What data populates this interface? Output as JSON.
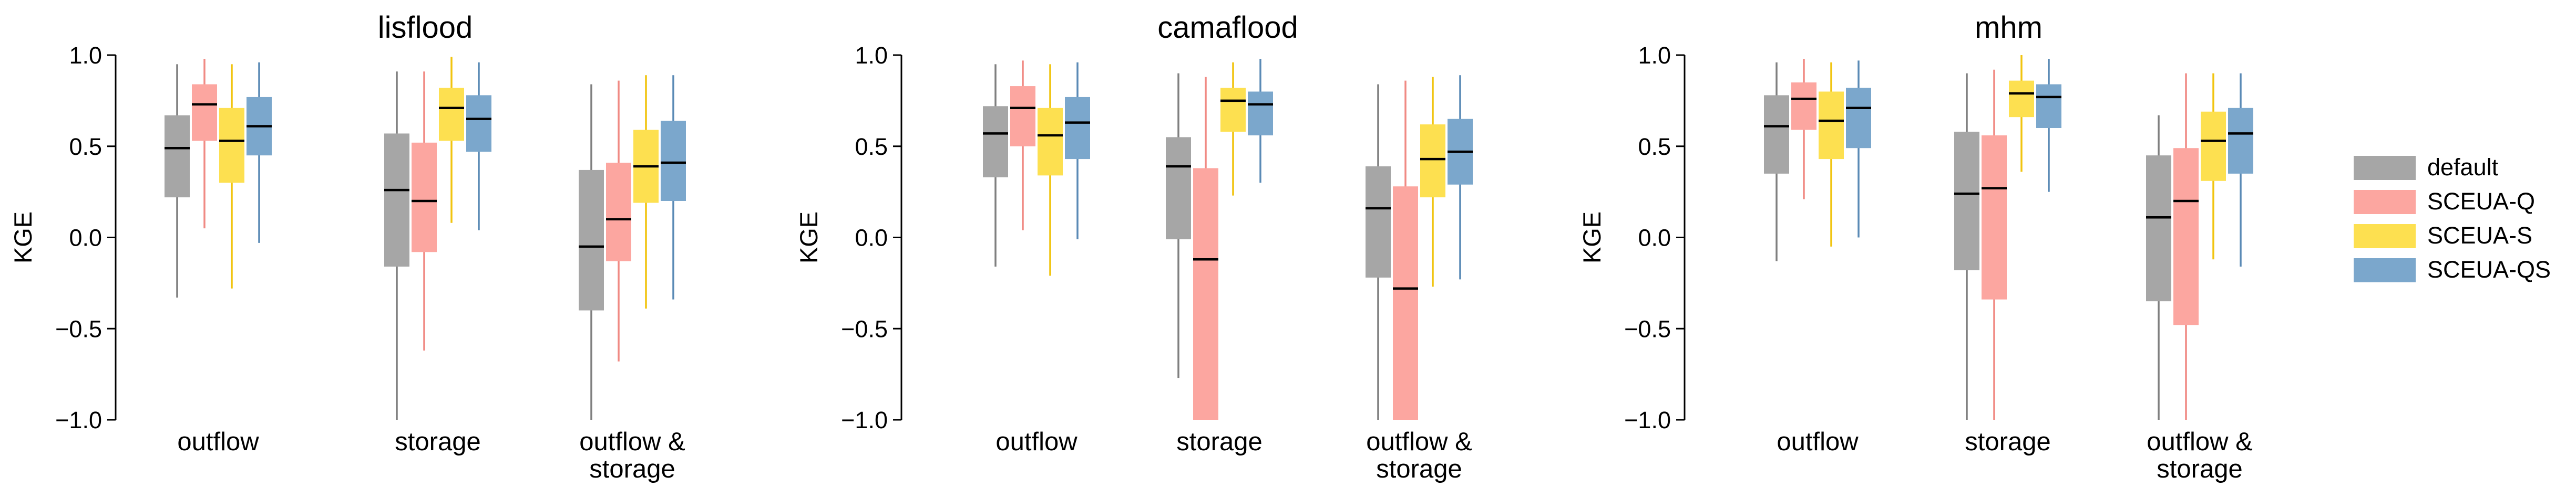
{
  "chart_data": {
    "type": "box",
    "ylabel": "KGE",
    "ylim": [
      -1.0,
      1.0
    ],
    "yticks": [
      {
        "value": -1.0,
        "label": "−1.0"
      },
      {
        "value": -0.5,
        "label": "−0.5"
      },
      {
        "value": 0.0,
        "label": "0.0"
      },
      {
        "value": 0.5,
        "label": "0.5"
      },
      {
        "value": 1.0,
        "label": "1.0"
      }
    ],
    "grid": false,
    "legend_position": "right",
    "categories": [
      {
        "lines": [
          "outflow"
        ]
      },
      {
        "lines": [
          "storage"
        ]
      },
      {
        "lines": [
          "outflow &",
          "storage"
        ]
      }
    ],
    "series": [
      {
        "name": "default",
        "fill": "#a6a6a6",
        "whisker": "#7f7f7f"
      },
      {
        "name": "SCEUA-Q",
        "fill": "#fca6a0",
        "whisker": "#f08a84"
      },
      {
        "name": "SCEUA-S",
        "fill": "#fde050",
        "whisker": "#f1c40f"
      },
      {
        "name": "SCEUA-QS",
        "fill": "#7ba7cc",
        "whisker": "#5a8ab5"
      }
    ],
    "panels": [
      {
        "title": "lisflood",
        "groups": [
          [
            {
              "whislo": -0.33,
              "q1": 0.22,
              "median": 0.49,
              "q3": 0.67,
              "whishi": 0.95
            },
            {
              "whislo": 0.05,
              "q1": 0.53,
              "median": 0.73,
              "q3": 0.84,
              "whishi": 0.98
            },
            {
              "whislo": -0.28,
              "q1": 0.3,
              "median": 0.53,
              "q3": 0.71,
              "whishi": 0.95
            },
            {
              "whislo": -0.03,
              "q1": 0.45,
              "median": 0.61,
              "q3": 0.77,
              "whishi": 0.96
            }
          ],
          [
            {
              "whislo": -1.0,
              "q1": -0.16,
              "median": 0.26,
              "q3": 0.57,
              "whishi": 0.91
            },
            {
              "whislo": -0.62,
              "q1": -0.08,
              "median": 0.2,
              "q3": 0.52,
              "whishi": 0.91
            },
            {
              "whislo": 0.08,
              "q1": 0.53,
              "median": 0.71,
              "q3": 0.82,
              "whishi": 0.99
            },
            {
              "whislo": 0.04,
              "q1": 0.47,
              "median": 0.65,
              "q3": 0.78,
              "whishi": 0.96
            }
          ],
          [
            {
              "whislo": -1.0,
              "q1": -0.4,
              "median": -0.05,
              "q3": 0.37,
              "whishi": 0.84
            },
            {
              "whislo": -0.68,
              "q1": -0.13,
              "median": 0.1,
              "q3": 0.41,
              "whishi": 0.86
            },
            {
              "whislo": -0.39,
              "q1": 0.19,
              "median": 0.39,
              "q3": 0.59,
              "whishi": 0.89
            },
            {
              "whislo": -0.34,
              "q1": 0.2,
              "median": 0.41,
              "q3": 0.64,
              "whishi": 0.89
            }
          ]
        ]
      },
      {
        "title": "camaflood",
        "groups": [
          [
            {
              "whislo": -0.16,
              "q1": 0.33,
              "median": 0.57,
              "q3": 0.72,
              "whishi": 0.95
            },
            {
              "whislo": 0.04,
              "q1": 0.5,
              "median": 0.71,
              "q3": 0.83,
              "whishi": 0.97
            },
            {
              "whislo": -0.21,
              "q1": 0.34,
              "median": 0.56,
              "q3": 0.71,
              "whishi": 0.95
            },
            {
              "whislo": -0.01,
              "q1": 0.43,
              "median": 0.63,
              "q3": 0.77,
              "whishi": 0.96
            }
          ],
          [
            {
              "whislo": -0.77,
              "q1": -0.01,
              "median": 0.39,
              "q3": 0.55,
              "whishi": 0.9
            },
            {
              "whislo": -1.0,
              "q1": -1.0,
              "median": -0.12,
              "q3": 0.38,
              "whishi": 0.88
            },
            {
              "whislo": 0.23,
              "q1": 0.58,
              "median": 0.75,
              "q3": 0.82,
              "whishi": 0.96
            },
            {
              "whislo": 0.3,
              "q1": 0.56,
              "median": 0.73,
              "q3": 0.8,
              "whishi": 0.98
            }
          ],
          [
            {
              "whislo": -1.0,
              "q1": -0.22,
              "median": 0.16,
              "q3": 0.39,
              "whishi": 0.84
            },
            {
              "whislo": -1.0,
              "q1": -1.0,
              "median": -0.28,
              "q3": 0.28,
              "whishi": 0.86
            },
            {
              "whislo": -0.27,
              "q1": 0.22,
              "median": 0.43,
              "q3": 0.62,
              "whishi": 0.88
            },
            {
              "whislo": -0.23,
              "q1": 0.29,
              "median": 0.47,
              "q3": 0.65,
              "whishi": 0.89
            }
          ]
        ]
      },
      {
        "title": "mhm",
        "groups": [
          [
            {
              "whislo": -0.13,
              "q1": 0.35,
              "median": 0.61,
              "q3": 0.78,
              "whishi": 0.96
            },
            {
              "whislo": 0.21,
              "q1": 0.59,
              "median": 0.76,
              "q3": 0.85,
              "whishi": 0.98
            },
            {
              "whislo": -0.05,
              "q1": 0.43,
              "median": 0.64,
              "q3": 0.8,
              "whishi": 0.96
            },
            {
              "whislo": 0.0,
              "q1": 0.49,
              "median": 0.71,
              "q3": 0.82,
              "whishi": 0.97
            }
          ],
          [
            {
              "whislo": -1.0,
              "q1": -0.18,
              "median": 0.24,
              "q3": 0.58,
              "whishi": 0.9
            },
            {
              "whislo": -1.0,
              "q1": -0.34,
              "median": 0.27,
              "q3": 0.56,
              "whishi": 0.92
            },
            {
              "whislo": 0.36,
              "q1": 0.66,
              "median": 0.79,
              "q3": 0.86,
              "whishi": 1.0
            },
            {
              "whislo": 0.25,
              "q1": 0.6,
              "median": 0.77,
              "q3": 0.84,
              "whishi": 0.98
            }
          ],
          [
            {
              "whislo": -1.0,
              "q1": -0.35,
              "median": 0.11,
              "q3": 0.45,
              "whishi": 0.67
            },
            {
              "whislo": -1.0,
              "q1": -0.48,
              "median": 0.2,
              "q3": 0.49,
              "whishi": 0.9
            },
            {
              "whislo": -0.12,
              "q1": 0.31,
              "median": 0.53,
              "q3": 0.69,
              "whishi": 0.9
            },
            {
              "whislo": -0.16,
              "q1": 0.35,
              "median": 0.57,
              "q3": 0.71,
              "whishi": 0.9
            }
          ]
        ]
      }
    ]
  }
}
